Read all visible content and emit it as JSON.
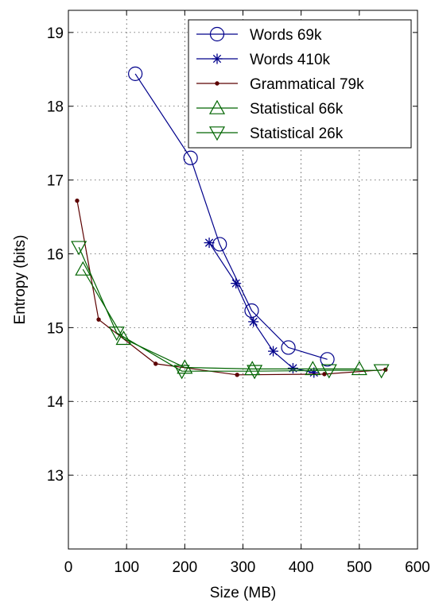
{
  "chart_data": {
    "type": "line",
    "title": "",
    "xlabel": "Size (MB)",
    "ylabel": "Entropy (bits)",
    "xlim": [
      0,
      600
    ],
    "ylim": [
      12,
      19.3
    ],
    "xticks": [
      0,
      100,
      200,
      300,
      400,
      500,
      600
    ],
    "yticks": [
      13,
      14,
      15,
      16,
      17,
      18,
      19
    ],
    "grid": true,
    "legend_position": "top-right",
    "series": [
      {
        "name": "Words 69k",
        "color": "#00008b",
        "marker": "circle",
        "points": [
          [
            115,
            18.44
          ],
          [
            210,
            17.3
          ],
          [
            260,
            16.13
          ],
          [
            315,
            15.23
          ],
          [
            378,
            14.73
          ],
          [
            445,
            14.57
          ]
        ]
      },
      {
        "name": "Words 410k",
        "color": "#00008b",
        "marker": "star",
        "points": [
          [
            242,
            16.15
          ],
          [
            288,
            15.6
          ],
          [
            318,
            15.08
          ],
          [
            352,
            14.68
          ],
          [
            386,
            14.45
          ],
          [
            422,
            14.39
          ]
        ]
      },
      {
        "name": "Grammatical 79k",
        "color": "#5c0000",
        "marker": "dot",
        "points": [
          [
            15,
            16.72
          ],
          [
            52,
            15.11
          ],
          [
            150,
            14.51
          ],
          [
            290,
            14.36
          ],
          [
            440,
            14.37
          ],
          [
            545,
            14.43
          ]
        ]
      },
      {
        "name": "Statistical 66k",
        "color": "#006400",
        "marker": "triangle-up",
        "points": [
          [
            25,
            15.79
          ],
          [
            95,
            14.85
          ],
          [
            200,
            14.46
          ],
          [
            316,
            14.44
          ],
          [
            420,
            14.44
          ],
          [
            500,
            14.44
          ]
        ]
      },
      {
        "name": "Statistical 26k",
        "color": "#006400",
        "marker": "triangle-down",
        "points": [
          [
            18,
            16.09
          ],
          [
            83,
            14.93
          ],
          [
            195,
            14.41
          ],
          [
            320,
            14.41
          ],
          [
            448,
            14.42
          ],
          [
            538,
            14.42
          ]
        ]
      }
    ]
  }
}
